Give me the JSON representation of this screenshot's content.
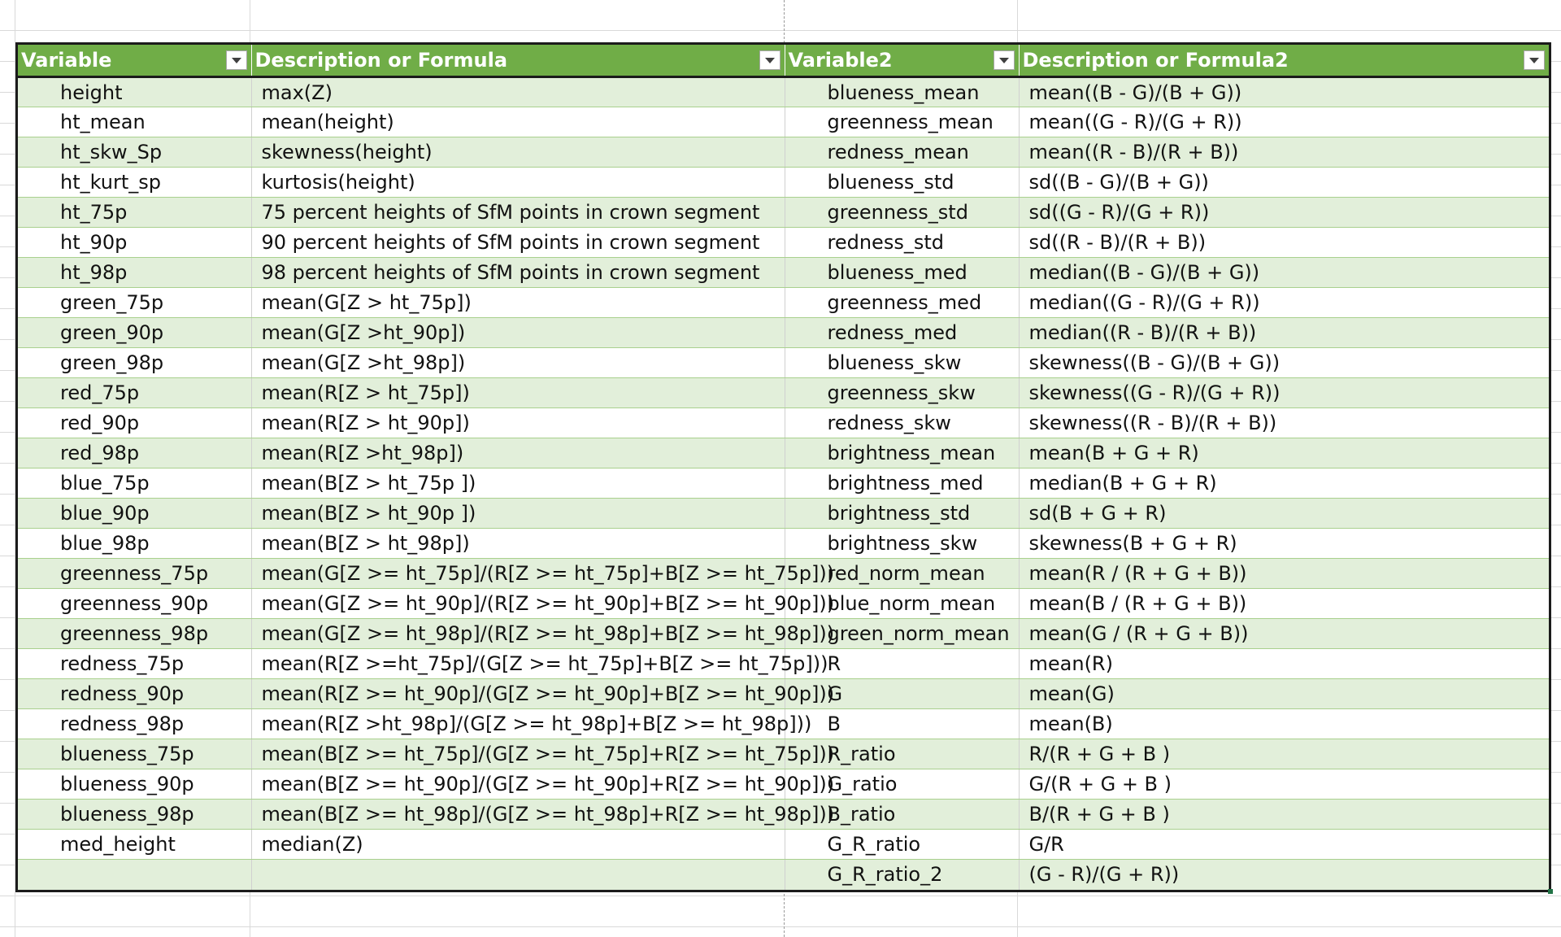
{
  "headers": {
    "variable": "Variable",
    "description": "Description or Formula",
    "variable2": "Variable2",
    "description2": "Description or Formula2"
  },
  "rows": [
    {
      "v": "height",
      "d": "max(Z)",
      "v2": "blueness_mean",
      "d2": "mean((B - G)/(B + G))"
    },
    {
      "v": "ht_mean",
      "d": "mean(height)",
      "v2": "greenness_mean",
      "d2": "mean((G - R)/(G + R))"
    },
    {
      "v": "ht_skw_Sp",
      "d": "skewness(height)",
      "v2": "redness_mean",
      "d2": "mean((R - B)/(R + B))"
    },
    {
      "v": "ht_kurt_sp",
      "d": "kurtosis(height)",
      "v2": "blueness_std",
      "d2": "sd((B - G)/(B + G))"
    },
    {
      "v": "ht_75p",
      "d": "75 percent heights of SfM points in crown segment",
      "v2": "greenness_std",
      "d2": "sd((G - R)/(G + R))"
    },
    {
      "v": "ht_90p",
      "d": "90 percent heights of SfM points in crown segment",
      "v2": "redness_std",
      "d2": "sd((R - B)/(R + B))"
    },
    {
      "v": "ht_98p",
      "d": "98 percent heights of SfM points in crown segment",
      "v2": "blueness_med",
      "d2": "median((B - G)/(B + G))"
    },
    {
      "v": "green_75p",
      "d": "mean(G[Z > ht_75p])",
      "v2": "greenness_med",
      "d2": "median((G - R)/(G + R))"
    },
    {
      "v": "green_90p",
      "d": "mean(G[Z >ht_90p])",
      "v2": "redness_med",
      "d2": "median((R - B)/(R + B))"
    },
    {
      "v": "green_98p",
      "d": "mean(G[Z >ht_98p])",
      "v2": "blueness_skw",
      "d2": "skewness((B - G)/(B + G))"
    },
    {
      "v": "red_75p",
      "d": "mean(R[Z > ht_75p])",
      "v2": "greenness_skw",
      "d2": "skewness((G - R)/(G + R))"
    },
    {
      "v": "red_90p",
      "d": "mean(R[Z > ht_90p])",
      "v2": "redness_skw",
      "d2": "skewness((R - B)/(R + B))"
    },
    {
      "v": "red_98p",
      "d": "mean(R[Z >ht_98p])",
      "v2": "brightness_mean",
      "d2": "mean(B + G + R)"
    },
    {
      "v": "blue_75p",
      "d": "mean(B[Z > ht_75p ])",
      "v2": "brightness_med",
      "d2": "median(B + G + R)"
    },
    {
      "v": "blue_90p",
      "d": "mean(B[Z > ht_90p ])",
      "v2": "brightness_std",
      "d2": "sd(B + G + R)"
    },
    {
      "v": "blue_98p",
      "d": "mean(B[Z >  ht_98p])",
      "v2": "brightness_skw",
      "d2": "skewness(B + G + R)"
    },
    {
      "v": "greenness_75p",
      "d": "mean(G[Z >= ht_75p]/(R[Z >= ht_75p]+B[Z >= ht_75p]))",
      "v2": "red_norm_mean",
      "d2": "mean(R / (R + G + B))"
    },
    {
      "v": "greenness_90p",
      "d": "mean(G[Z >= ht_90p]/(R[Z >= ht_90p]+B[Z >= ht_90p]))",
      "v2": "blue_norm_mean",
      "d2": "mean(B / (R + G + B))"
    },
    {
      "v": "greenness_98p",
      "d": "mean(G[Z >= ht_98p]/(R[Z >= ht_98p]+B[Z >= ht_98p]))",
      "v2": "green_norm_mean",
      "d2": "mean(G / (R + G + B))"
    },
    {
      "v": "redness_75p",
      "d": "mean(R[Z >=ht_75p]/(G[Z >= ht_75p]+B[Z >= ht_75p]))",
      "v2": "R",
      "d2": "mean(R)"
    },
    {
      "v": "redness_90p",
      "d": "mean(R[Z >= ht_90p]/(G[Z >= ht_90p]+B[Z >= ht_90p]))",
      "v2": "G",
      "d2": "mean(G)"
    },
    {
      "v": "redness_98p",
      "d": "mean(R[Z >ht_98p]/(G[Z >= ht_98p]+B[Z >= ht_98p]))",
      "v2": "B",
      "d2": "mean(B)"
    },
    {
      "v": "blueness_75p",
      "d": "mean(B[Z >= ht_75p]/(G[Z >= ht_75p]+R[Z >= ht_75p]))",
      "v2": "R_ratio",
      "d2": "R/(R + G + B )"
    },
    {
      "v": "blueness_90p",
      "d": "mean(B[Z >= ht_90p]/(G[Z >= ht_90p]+R[Z >= ht_90p]))",
      "v2": "G_ratio",
      "d2": "G/(R + G + B )"
    },
    {
      "v": "blueness_98p",
      "d": "mean(B[Z >= ht_98p]/(G[Z >= ht_98p]+R[Z >= ht_98p]))",
      "v2": "B_ratio",
      "d2": "B/(R + G + B )"
    },
    {
      "v": "med_height",
      "d": "median(Z)",
      "v2": "G_R_ratio",
      "d2": "G/R"
    },
    {
      "v": "",
      "d": "",
      "v2": "G_R_ratio_2",
      "d2": "(G - R)/(G + R))"
    }
  ],
  "colors": {
    "header_bg": "#70ad47",
    "band_bg": "#e2efda",
    "border": "#1b1b1b"
  },
  "icons": {
    "filter": "dropdown-arrow-icon"
  }
}
